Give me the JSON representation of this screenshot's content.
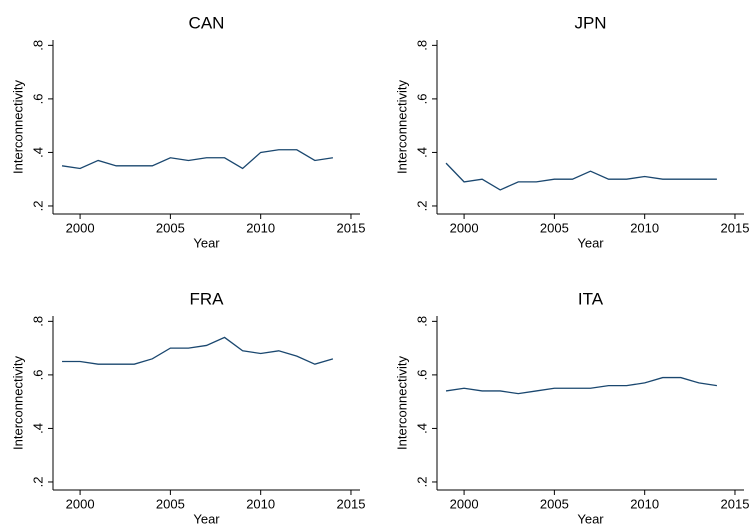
{
  "chart_data": [
    {
      "type": "line",
      "title": "CAN",
      "xlabel": "Year",
      "ylabel": "Interconnectivity",
      "color": "#1a476f",
      "x": [
        1999,
        2000,
        2001,
        2002,
        2003,
        2004,
        2005,
        2006,
        2007,
        2008,
        2009,
        2010,
        2011,
        2012,
        2013,
        2014
      ],
      "values": [
        0.35,
        0.34,
        0.37,
        0.35,
        0.35,
        0.35,
        0.38,
        0.37,
        0.38,
        0.38,
        0.34,
        0.4,
        0.41,
        0.41,
        0.37,
        0.38
      ],
      "xlim": [
        1998.5,
        2015.5
      ],
      "ylim": [
        0.17,
        0.82
      ],
      "xticks": [
        2000,
        2005,
        2010,
        2015
      ],
      "yticks": [
        {
          "value": 0.2,
          "label": ".2"
        },
        {
          "value": 0.4,
          "label": ".4"
        },
        {
          "value": 0.6,
          "label": ".6"
        },
        {
          "value": 0.8,
          "label": ".8"
        }
      ]
    },
    {
      "type": "line",
      "title": "JPN",
      "xlabel": "Year",
      "ylabel": "Interconnectivity",
      "color": "#1a476f",
      "x": [
        1999,
        2000,
        2001,
        2002,
        2003,
        2004,
        2005,
        2006,
        2007,
        2008,
        2009,
        2010,
        2011,
        2012,
        2013,
        2014
      ],
      "values": [
        0.36,
        0.29,
        0.3,
        0.26,
        0.29,
        0.29,
        0.3,
        0.3,
        0.33,
        0.3,
        0.3,
        0.31,
        0.3,
        0.3,
        0.3,
        0.3
      ],
      "xlim": [
        1998.5,
        2015.5
      ],
      "ylim": [
        0.17,
        0.82
      ],
      "xticks": [
        2000,
        2005,
        2010,
        2015
      ],
      "yticks": [
        {
          "value": 0.2,
          "label": ".2"
        },
        {
          "value": 0.4,
          "label": ".4"
        },
        {
          "value": 0.6,
          "label": ".6"
        },
        {
          "value": 0.8,
          "label": ".8"
        }
      ]
    },
    {
      "type": "line",
      "title": "FRA",
      "xlabel": "Year",
      "ylabel": "Interconnectivity",
      "color": "#1a476f",
      "x": [
        1999,
        2000,
        2001,
        2002,
        2003,
        2004,
        2005,
        2006,
        2007,
        2008,
        2009,
        2010,
        2011,
        2012,
        2013,
        2014
      ],
      "values": [
        0.65,
        0.65,
        0.64,
        0.64,
        0.64,
        0.66,
        0.7,
        0.7,
        0.71,
        0.74,
        0.69,
        0.68,
        0.69,
        0.67,
        0.64,
        0.66
      ],
      "xlim": [
        1998.5,
        2015.5
      ],
      "ylim": [
        0.17,
        0.82
      ],
      "xticks": [
        2000,
        2005,
        2010,
        2015
      ],
      "yticks": [
        {
          "value": 0.2,
          "label": ".2"
        },
        {
          "value": 0.4,
          "label": ".4"
        },
        {
          "value": 0.6,
          "label": ".6"
        },
        {
          "value": 0.8,
          "label": ".8"
        }
      ]
    },
    {
      "type": "line",
      "title": "ITA",
      "xlabel": "Year",
      "ylabel": "Interconnectivity",
      "color": "#1a476f",
      "x": [
        1999,
        2000,
        2001,
        2002,
        2003,
        2004,
        2005,
        2006,
        2007,
        2008,
        2009,
        2010,
        2011,
        2012,
        2013,
        2014
      ],
      "values": [
        0.54,
        0.55,
        0.54,
        0.54,
        0.53,
        0.54,
        0.55,
        0.55,
        0.55,
        0.56,
        0.56,
        0.57,
        0.59,
        0.59,
        0.57,
        0.56
      ],
      "xlim": [
        1998.5,
        2015.5
      ],
      "ylim": [
        0.17,
        0.82
      ],
      "xticks": [
        2000,
        2005,
        2010,
        2015
      ],
      "yticks": [
        {
          "value": 0.2,
          "label": ".2"
        },
        {
          "value": 0.4,
          "label": ".4"
        },
        {
          "value": 0.6,
          "label": ".6"
        },
        {
          "value": 0.8,
          "label": ".8"
        }
      ]
    }
  ]
}
